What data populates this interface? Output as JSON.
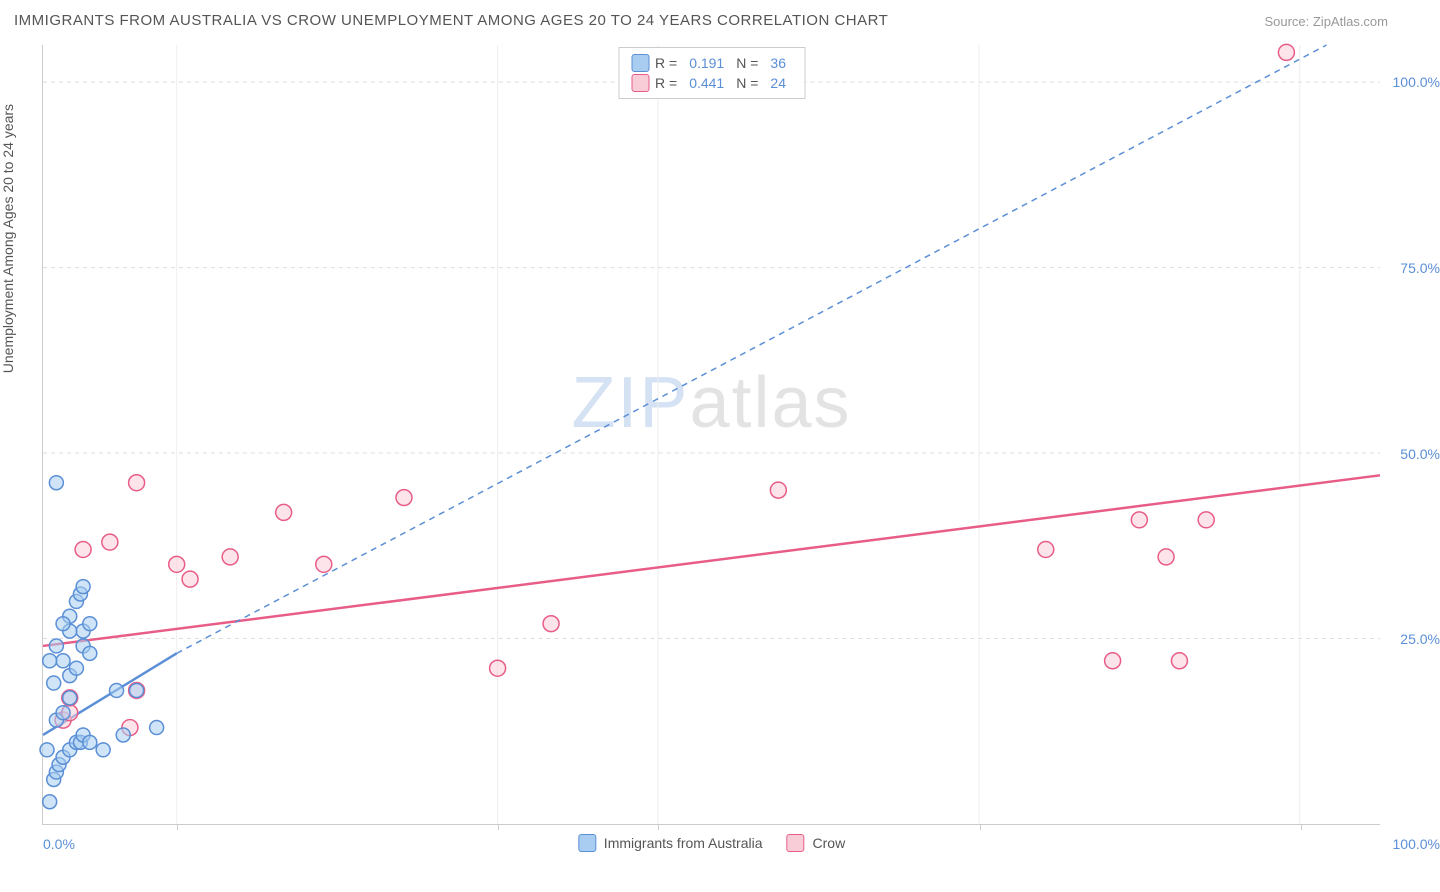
{
  "title": "IMMIGRANTS FROM AUSTRALIA VS CROW UNEMPLOYMENT AMONG AGES 20 TO 24 YEARS CORRELATION CHART",
  "source_prefix": "Source: ",
  "source_link": "ZipAtlas.com",
  "ylabel": "Unemployment Among Ages 20 to 24 years",
  "watermark_a": "ZIP",
  "watermark_b": "atlas",
  "chart": {
    "type": "scatter",
    "xlim": [
      0,
      100
    ],
    "ylim": [
      0,
      105
    ],
    "xtick_left": "0.0%",
    "xtick_right": "100.0%",
    "xtick_positions": [
      10,
      34,
      46,
      70,
      94
    ],
    "ytick_labels": [
      "25.0%",
      "50.0%",
      "75.0%",
      "100.0%"
    ],
    "ytick_values": [
      25,
      50,
      75,
      100
    ],
    "grid_color": "#dddddd",
    "background_color": "#ffffff",
    "series_blue": {
      "label": "Immigrants from Australia",
      "color_fill": "#a8cdf0",
      "color_stroke": "#5b8fd6",
      "marker_r": 7,
      "r_value": "0.191",
      "n_value": "36",
      "points": [
        [
          0.5,
          3
        ],
        [
          0.8,
          6
        ],
        [
          1.0,
          7
        ],
        [
          1.2,
          8
        ],
        [
          1.5,
          9
        ],
        [
          0.3,
          10
        ],
        [
          2.0,
          10
        ],
        [
          2.5,
          11
        ],
        [
          2.8,
          11
        ],
        [
          3.0,
          12
        ],
        [
          3.5,
          11
        ],
        [
          6.0,
          12
        ],
        [
          4.5,
          10
        ],
        [
          8.5,
          13
        ],
        [
          5.5,
          18
        ],
        [
          7.0,
          18
        ],
        [
          1.0,
          14
        ],
        [
          1.5,
          15
        ],
        [
          2.0,
          17
        ],
        [
          0.8,
          19
        ],
        [
          2.0,
          20
        ],
        [
          2.5,
          21
        ],
        [
          3.0,
          24
        ],
        [
          3.5,
          23
        ],
        [
          3.0,
          26
        ],
        [
          2.0,
          26
        ],
        [
          2.0,
          28
        ],
        [
          1.5,
          27
        ],
        [
          2.5,
          30
        ],
        [
          2.8,
          31
        ],
        [
          3.0,
          32
        ],
        [
          3.5,
          27
        ],
        [
          1.5,
          22
        ],
        [
          1.0,
          24
        ],
        [
          0.5,
          22
        ],
        [
          1.0,
          46
        ]
      ],
      "trend_line": {
        "x1": 0,
        "y1": 12,
        "x2": 10,
        "y2": 23,
        "dash": false,
        "width": 2.5
      },
      "trend_dash": {
        "x1": 10,
        "y1": 23,
        "x2": 96,
        "y2": 105,
        "dash": true,
        "width": 1.5
      }
    },
    "series_pink": {
      "label": "Crow",
      "color_fill": "#f9cdd8",
      "color_stroke": "#e85d87",
      "marker_r": 8,
      "r_value": "0.441",
      "n_value": "24",
      "points": [
        [
          1.5,
          14
        ],
        [
          2.0,
          15
        ],
        [
          2.0,
          17
        ],
        [
          7.0,
          18
        ],
        [
          6.5,
          13
        ],
        [
          3.0,
          37
        ],
        [
          5.0,
          38
        ],
        [
          7.0,
          46
        ],
        [
          10,
          35
        ],
        [
          11,
          33
        ],
        [
          14,
          36
        ],
        [
          18,
          42
        ],
        [
          21,
          35
        ],
        [
          27,
          44
        ],
        [
          34,
          21
        ],
        [
          38,
          27
        ],
        [
          55,
          45
        ],
        [
          75,
          37
        ],
        [
          80,
          22
        ],
        [
          82,
          41
        ],
        [
          84,
          36
        ],
        [
          87,
          41
        ],
        [
          85,
          22
        ],
        [
          93,
          104
        ]
      ],
      "trend_line": {
        "x1": 0,
        "y1": 24,
        "x2": 100,
        "y2": 47,
        "dash": false,
        "width": 2.5
      }
    }
  },
  "legend": {
    "r_label": "R  = ",
    "n_label": "N  = "
  }
}
